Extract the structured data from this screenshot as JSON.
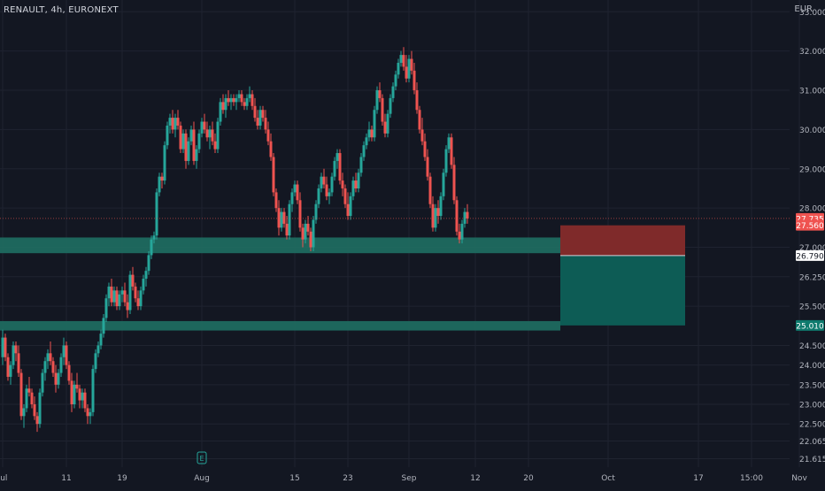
{
  "header": {
    "symbol_title": "RENAULT, 4h, EURONEXT",
    "currency": "EUR"
  },
  "colors": {
    "background": "#131722",
    "grid": "#1f2330",
    "axis_text": "#b2b5be",
    "up": "#26a69a",
    "down": "#ef5350",
    "zone_fill": "#1f6f63",
    "stop_fill": "#7f2a2a",
    "target_fill": "#0d5c55",
    "price_badge_red": "#ef5350",
    "price_badge_teal": "#0f7a6d",
    "price_badge_white": "#ffffff"
  },
  "chart_data": {
    "type": "candlestick",
    "title": "RENAULT, 4h, EURONEXT",
    "ylabel": "EUR",
    "ylim": [
      21.4,
      33.3
    ],
    "y_ticks": [
      "33.000",
      "32.000",
      "31.000",
      "30.000",
      "29.000",
      "28.000",
      "27.000",
      "26.250",
      "25.500",
      "24.500",
      "24.000",
      "23.500",
      "23.000",
      "22.500",
      "22.065",
      "21.615"
    ],
    "y_tick_values": [
      33.0,
      32.0,
      31.0,
      30.0,
      29.0,
      28.0,
      27.0,
      26.25,
      25.5,
      24.5,
      24.0,
      23.5,
      23.0,
      22.5,
      22.065,
      21.615
    ],
    "x_ticks": [
      "Jul",
      "11",
      "19",
      "Aug",
      "15",
      "23",
      "Sep",
      "12",
      "20",
      "Oct",
      "17",
      "15:00",
      "Nov"
    ],
    "x_tick_bars": [
      0,
      24,
      45,
      75,
      110,
      130,
      153,
      178,
      198,
      228,
      262,
      282,
      300
    ],
    "candles": [
      [
        24.2,
        24.9,
        24.0,
        24.7
      ],
      [
        24.7,
        24.8,
        24.1,
        24.2
      ],
      [
        24.2,
        24.3,
        23.6,
        23.7
      ],
      [
        23.7,
        24.1,
        23.5,
        24.0
      ],
      [
        24.0,
        24.6,
        23.9,
        24.5
      ],
      [
        24.5,
        24.6,
        24.1,
        24.3
      ],
      [
        24.3,
        24.5,
        23.7,
        23.8
      ],
      [
        23.8,
        23.9,
        22.6,
        22.7
      ],
      [
        22.7,
        23.0,
        22.4,
        22.9
      ],
      [
        22.9,
        23.5,
        22.8,
        23.4
      ],
      [
        23.4,
        23.7,
        23.2,
        23.3
      ],
      [
        23.3,
        23.4,
        22.9,
        23.0
      ],
      [
        23.0,
        23.2,
        22.6,
        22.7
      ],
      [
        22.7,
        22.8,
        22.3,
        22.5
      ],
      [
        22.5,
        23.4,
        22.4,
        23.3
      ],
      [
        23.3,
        23.9,
        23.2,
        23.8
      ],
      [
        23.8,
        24.2,
        23.6,
        24.1
      ],
      [
        24.1,
        24.4,
        23.9,
        24.3
      ],
      [
        24.3,
        24.6,
        24.0,
        24.1
      ],
      [
        24.1,
        24.2,
        23.7,
        23.8
      ],
      [
        23.8,
        24.0,
        23.3,
        23.5
      ],
      [
        23.5,
        23.9,
        23.4,
        23.8
      ],
      [
        23.8,
        24.3,
        23.7,
        24.2
      ],
      [
        24.2,
        24.7,
        24.0,
        24.5
      ],
      [
        24.5,
        24.6,
        23.9,
        24.0
      ],
      [
        24.0,
        24.1,
        23.5,
        23.6
      ],
      [
        23.6,
        23.8,
        22.8,
        23.0
      ],
      [
        23.0,
        23.6,
        22.9,
        23.5
      ],
      [
        23.5,
        23.8,
        23.3,
        23.4
      ],
      [
        23.4,
        23.5,
        22.9,
        23.1
      ],
      [
        23.1,
        23.4,
        22.9,
        23.3
      ],
      [
        23.3,
        23.4,
        22.8,
        22.9
      ],
      [
        22.9,
        23.0,
        22.5,
        22.7
      ],
      [
        22.7,
        22.9,
        22.5,
        22.8
      ],
      [
        22.8,
        24.0,
        22.7,
        23.9
      ],
      [
        23.9,
        24.4,
        23.8,
        24.3
      ],
      [
        24.3,
        24.6,
        24.2,
        24.5
      ],
      [
        24.5,
        24.9,
        24.4,
        24.8
      ],
      [
        24.8,
        25.3,
        24.7,
        25.2
      ],
      [
        25.2,
        25.8,
        25.1,
        25.7
      ],
      [
        25.7,
        26.1,
        25.5,
        26.0
      ],
      [
        26.0,
        26.2,
        25.5,
        25.6
      ],
      [
        25.6,
        26.0,
        25.5,
        25.9
      ],
      [
        25.9,
        26.0,
        25.4,
        25.5
      ],
      [
        25.5,
        25.9,
        25.4,
        25.8
      ],
      [
        25.8,
        26.0,
        25.6,
        25.9
      ],
      [
        25.9,
        26.1,
        25.5,
        25.6
      ],
      [
        25.6,
        25.8,
        25.2,
        25.4
      ],
      [
        25.4,
        26.4,
        25.3,
        26.3
      ],
      [
        26.3,
        26.5,
        25.9,
        26.0
      ],
      [
        26.0,
        26.1,
        25.6,
        25.7
      ],
      [
        25.7,
        25.9,
        25.4,
        25.5
      ],
      [
        25.5,
        26.0,
        25.4,
        25.9
      ],
      [
        25.9,
        26.3,
        25.8,
        26.2
      ],
      [
        26.2,
        26.5,
        26.0,
        26.4
      ],
      [
        26.4,
        26.9,
        26.3,
        26.8
      ],
      [
        26.8,
        27.3,
        26.7,
        27.2
      ],
      [
        27.2,
        27.4,
        27.1,
        27.3
      ],
      [
        27.3,
        28.5,
        27.2,
        28.4
      ],
      [
        28.4,
        28.9,
        28.3,
        28.8
      ],
      [
        28.8,
        28.9,
        28.5,
        28.7
      ],
      [
        28.7,
        29.7,
        28.6,
        29.6
      ],
      [
        29.6,
        30.2,
        29.5,
        30.1
      ],
      [
        30.1,
        30.4,
        29.9,
        30.3
      ],
      [
        30.3,
        30.5,
        29.9,
        30.0
      ],
      [
        30.0,
        30.4,
        29.8,
        30.3
      ],
      [
        30.3,
        30.5,
        30.0,
        30.1
      ],
      [
        30.1,
        30.2,
        29.4,
        29.5
      ],
      [
        29.5,
        30.0,
        29.4,
        29.9
      ],
      [
        29.9,
        30.0,
        29.0,
        29.2
      ],
      [
        29.2,
        29.8,
        29.1,
        29.7
      ],
      [
        29.7,
        30.1,
        29.6,
        30.0
      ],
      [
        30.0,
        30.2,
        29.1,
        29.2
      ],
      [
        29.2,
        29.6,
        29.0,
        29.5
      ],
      [
        29.5,
        30.0,
        29.4,
        29.9
      ],
      [
        29.9,
        30.3,
        29.8,
        30.2
      ],
      [
        30.2,
        30.4,
        29.9,
        30.0
      ],
      [
        30.0,
        30.2,
        29.7,
        29.8
      ],
      [
        29.8,
        30.1,
        29.5,
        30.0
      ],
      [
        30.0,
        30.2,
        29.6,
        29.7
      ],
      [
        29.7,
        29.9,
        29.4,
        29.5
      ],
      [
        29.5,
        30.3,
        29.4,
        30.2
      ],
      [
        30.2,
        30.8,
        30.1,
        30.7
      ],
      [
        30.7,
        30.9,
        30.4,
        30.5
      ],
      [
        30.5,
        30.9,
        30.3,
        30.8
      ],
      [
        30.8,
        31.0,
        30.6,
        30.7
      ],
      [
        30.7,
        30.9,
        30.5,
        30.8
      ],
      [
        30.8,
        30.9,
        30.6,
        30.7
      ],
      [
        30.7,
        30.9,
        30.5,
        30.8
      ],
      [
        30.8,
        31.0,
        30.7,
        30.9
      ],
      [
        30.9,
        31.0,
        30.6,
        30.7
      ],
      [
        30.7,
        30.8,
        30.5,
        30.6
      ],
      [
        30.6,
        30.9,
        30.5,
        30.8
      ],
      [
        30.8,
        31.1,
        30.7,
        30.9
      ],
      [
        30.9,
        31.0,
        30.5,
        30.6
      ],
      [
        30.6,
        30.8,
        30.2,
        30.3
      ],
      [
        30.3,
        30.5,
        30.0,
        30.1
      ],
      [
        30.1,
        30.6,
        30.0,
        30.5
      ],
      [
        30.5,
        30.6,
        30.2,
        30.3
      ],
      [
        30.3,
        30.5,
        29.9,
        30.0
      ],
      [
        30.0,
        30.2,
        29.6,
        29.7
      ],
      [
        29.7,
        29.9,
        29.2,
        29.3
      ],
      [
        29.3,
        29.4,
        28.3,
        28.4
      ],
      [
        28.4,
        28.5,
        27.9,
        28.0
      ],
      [
        28.0,
        28.2,
        27.3,
        27.5
      ],
      [
        27.5,
        28.0,
        27.4,
        27.9
      ],
      [
        27.9,
        28.0,
        27.5,
        27.6
      ],
      [
        27.6,
        27.8,
        27.2,
        27.3
      ],
      [
        27.3,
        28.2,
        27.2,
        28.1
      ],
      [
        28.1,
        28.5,
        27.9,
        28.4
      ],
      [
        28.4,
        28.7,
        28.3,
        28.6
      ],
      [
        28.6,
        28.7,
        28.1,
        28.2
      ],
      [
        28.2,
        28.4,
        27.4,
        27.5
      ],
      [
        27.5,
        27.6,
        27.0,
        27.2
      ],
      [
        27.2,
        27.7,
        27.1,
        27.6
      ],
      [
        27.6,
        27.8,
        27.3,
        27.4
      ],
      [
        27.4,
        27.5,
        26.9,
        27.0
      ],
      [
        27.0,
        27.8,
        26.9,
        27.7
      ],
      [
        27.7,
        28.2,
        27.6,
        28.1
      ],
      [
        28.1,
        28.6,
        28.0,
        28.5
      ],
      [
        28.5,
        28.9,
        28.4,
        28.8
      ],
      [
        28.8,
        29.0,
        28.5,
        28.6
      ],
      [
        28.6,
        28.8,
        28.2,
        28.3
      ],
      [
        28.3,
        28.5,
        28.1,
        28.4
      ],
      [
        28.4,
        28.9,
        28.3,
        28.8
      ],
      [
        28.8,
        29.3,
        28.7,
        29.2
      ],
      [
        29.2,
        29.5,
        29.0,
        29.4
      ],
      [
        29.4,
        29.5,
        28.6,
        28.7
      ],
      [
        28.7,
        28.9,
        28.3,
        28.5
      ],
      [
        28.5,
        28.6,
        28.0,
        28.1
      ],
      [
        28.1,
        28.4,
        27.7,
        27.8
      ],
      [
        27.8,
        28.4,
        27.7,
        28.3
      ],
      [
        28.3,
        28.8,
        28.2,
        28.7
      ],
      [
        28.7,
        28.9,
        28.4,
        28.5
      ],
      [
        28.5,
        29.0,
        28.4,
        28.9
      ],
      [
        28.9,
        29.4,
        28.8,
        29.3
      ],
      [
        29.3,
        29.7,
        29.2,
        29.6
      ],
      [
        29.6,
        29.9,
        29.5,
        29.8
      ],
      [
        29.8,
        30.2,
        29.7,
        30.0
      ],
      [
        30.0,
        30.1,
        29.7,
        29.8
      ],
      [
        29.8,
        30.6,
        29.7,
        30.5
      ],
      [
        30.5,
        31.1,
        30.4,
        31.0
      ],
      [
        31.0,
        31.2,
        30.7,
        30.8
      ],
      [
        30.8,
        30.9,
        30.1,
        30.2
      ],
      [
        30.2,
        30.4,
        29.8,
        29.9
      ],
      [
        29.9,
        30.5,
        29.8,
        30.4
      ],
      [
        30.4,
        30.9,
        30.3,
        30.8
      ],
      [
        30.8,
        31.2,
        30.7,
        31.1
      ],
      [
        31.1,
        31.5,
        31.0,
        31.4
      ],
      [
        31.4,
        31.8,
        31.3,
        31.7
      ],
      [
        31.7,
        32.0,
        31.6,
        31.9
      ],
      [
        31.9,
        32.1,
        31.5,
        31.6
      ],
      [
        31.6,
        31.9,
        31.2,
        31.3
      ],
      [
        31.3,
        31.9,
        31.2,
        31.8
      ],
      [
        31.8,
        32.0,
        31.4,
        31.5
      ],
      [
        31.5,
        31.7,
        30.9,
        31.0
      ],
      [
        31.0,
        31.2,
        30.4,
        30.5
      ],
      [
        30.5,
        30.6,
        29.9,
        30.0
      ],
      [
        30.0,
        30.3,
        29.6,
        29.7
      ],
      [
        29.7,
        29.9,
        29.2,
        29.3
      ],
      [
        29.3,
        29.5,
        28.7,
        28.8
      ],
      [
        28.8,
        28.9,
        28.0,
        28.1
      ],
      [
        28.1,
        28.3,
        27.4,
        27.5
      ],
      [
        27.5,
        28.1,
        27.4,
        28.0
      ],
      [
        28.0,
        28.2,
        27.6,
        27.8
      ],
      [
        27.8,
        28.4,
        27.7,
        28.3
      ],
      [
        28.3,
        29.0,
        28.2,
        28.9
      ],
      [
        28.9,
        29.6,
        28.8,
        29.5
      ],
      [
        29.5,
        29.9,
        29.4,
        29.8
      ],
      [
        29.8,
        29.9,
        29.0,
        29.1
      ],
      [
        29.1,
        29.3,
        28.1,
        28.2
      ],
      [
        28.2,
        28.3,
        27.3,
        27.4
      ],
      [
        27.4,
        27.6,
        27.1,
        27.2
      ],
      [
        27.2,
        27.7,
        27.1,
        27.6
      ],
      [
        27.6,
        28.0,
        27.5,
        27.9
      ],
      [
        27.9,
        28.1,
        27.6,
        27.735
      ]
    ],
    "zones": [
      {
        "type": "support",
        "from": 26.85,
        "to": 27.25
      },
      {
        "type": "support",
        "from": 24.88,
        "to": 25.12
      }
    ],
    "position": {
      "type": "long",
      "entry": 26.79,
      "stop": 27.56,
      "target": 25.01
    },
    "price_badges": [
      {
        "label": "27.735",
        "value": 27.735,
        "style": "red"
      },
      {
        "label": "27.560",
        "value": 27.56,
        "style": "red"
      },
      {
        "label": "26.790",
        "value": 26.79,
        "style": "white"
      },
      {
        "label": "25.010",
        "value": 25.01,
        "style": "teal"
      }
    ],
    "annotations": [
      {
        "label": "E",
        "bar": 75
      }
    ],
    "grid": true,
    "legend": "none"
  }
}
